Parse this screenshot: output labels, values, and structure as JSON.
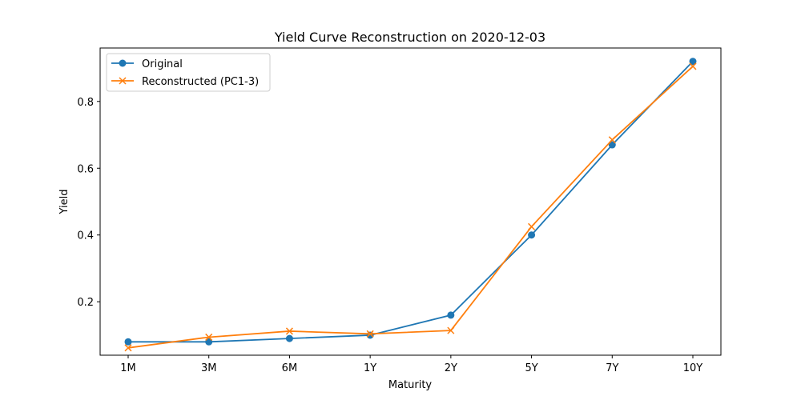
{
  "chart_data": {
    "type": "line",
    "title": "Yield Curve Reconstruction on 2020-12-03",
    "xlabel": "Maturity",
    "ylabel": "Yield",
    "categories": [
      "1M",
      "3M",
      "6M",
      "1Y",
      "2Y",
      "5Y",
      "7Y",
      "10Y"
    ],
    "ylim": [
      0.04,
      0.96
    ],
    "yticks": [
      0.2,
      0.4,
      0.6,
      0.8
    ],
    "ytick_labels": [
      "0.2",
      "0.4",
      "0.6",
      "0.8"
    ],
    "grid": false,
    "legend_position": "top-left",
    "series": [
      {
        "name": "Original",
        "color": "#1f77b4",
        "marker": "circle",
        "values": [
          0.08,
          0.08,
          0.09,
          0.1,
          0.16,
          0.4,
          0.67,
          0.92
        ]
      },
      {
        "name": "Reconstructed (PC1-3)",
        "color": "#ff7f0e",
        "marker": "x",
        "values": [
          0.062,
          0.094,
          0.112,
          0.104,
          0.114,
          0.425,
          0.685,
          0.905
        ]
      }
    ]
  }
}
